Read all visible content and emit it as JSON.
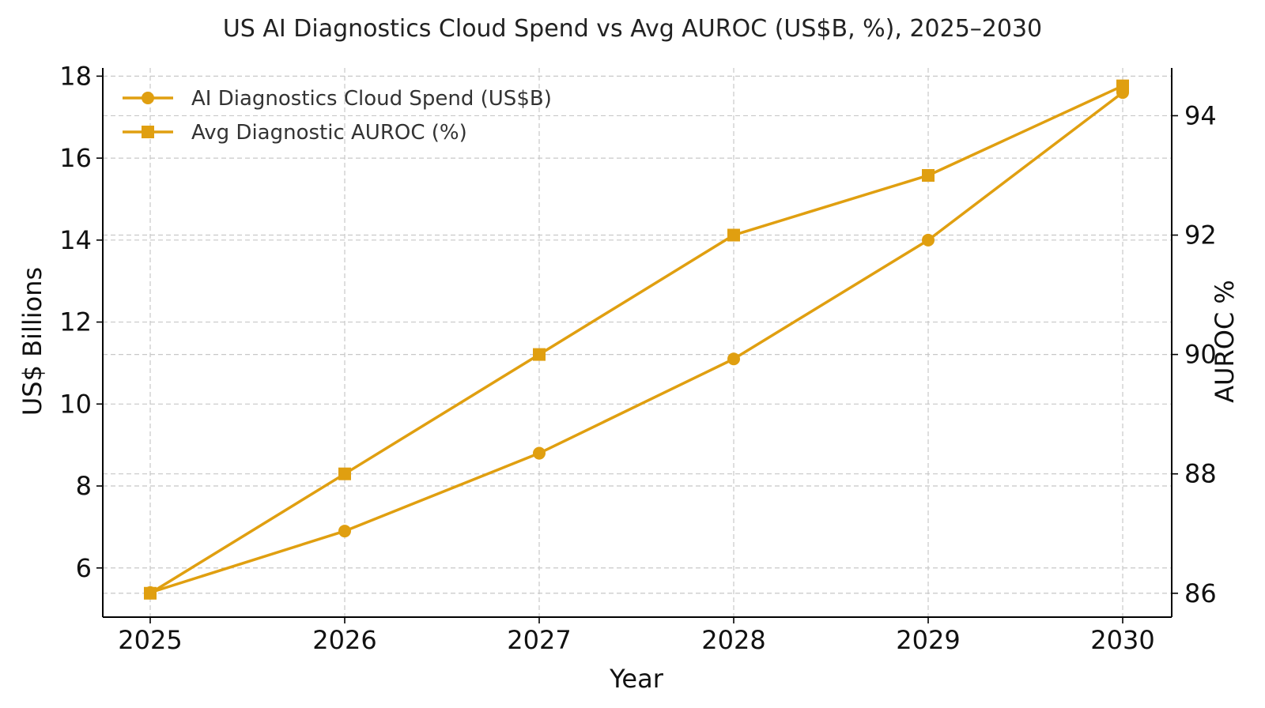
{
  "chart_data": {
    "type": "line",
    "title": "US AI Diagnostics Cloud Spend vs Avg AUROC (US$B, %), 2025–2030",
    "xlabel": "Year",
    "ylabel_left": "US$ Billions",
    "ylabel_right": "AUROC %",
    "x": [
      "2025",
      "2026",
      "2027",
      "2028",
      "2029",
      "2030"
    ],
    "ylim_left": [
      4.8,
      18.2
    ],
    "ylim_right": [
      85.6,
      94.8
    ],
    "yticks_left": [
      6,
      8,
      10,
      12,
      14,
      16,
      18
    ],
    "yticks_right": [
      86,
      88,
      90,
      92,
      94
    ],
    "grid": true,
    "legend_position": "upper-left",
    "series": [
      {
        "name": "AI Diagnostics Cloud Spend (US$B)",
        "axis": "left",
        "marker": "circle",
        "color": "#E09F10",
        "values": [
          5.4,
          6.9,
          8.8,
          11.1,
          14.0,
          17.6
        ]
      },
      {
        "name": "Avg Diagnostic AUROC (%)",
        "axis": "right",
        "marker": "square",
        "color": "#E09F10",
        "values": [
          86.0,
          88.0,
          90.0,
          92.0,
          93.0,
          94.5
        ]
      }
    ]
  }
}
